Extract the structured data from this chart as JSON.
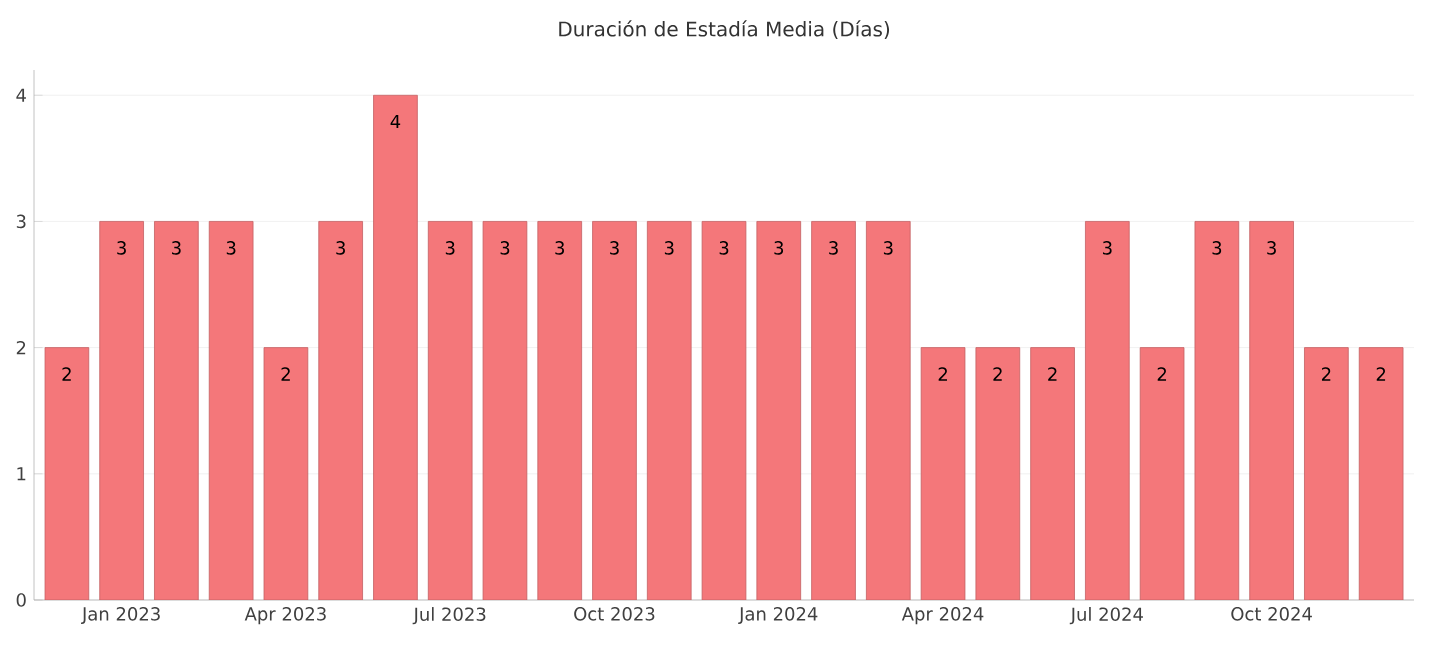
{
  "chart_data": {
    "type": "bar",
    "title": "Duración de Estadía Media (Días)",
    "categories": [
      null,
      "Jan 2023",
      null,
      null,
      "Apr 2023",
      null,
      null,
      "Jul 2023",
      null,
      null,
      "Oct 2023",
      null,
      null,
      "Jan 2024",
      null,
      null,
      "Apr 2024",
      null,
      null,
      "Jul 2024",
      null,
      null,
      "Oct 2024",
      null,
      null
    ],
    "values": [
      2,
      3,
      3,
      3,
      2,
      3,
      4,
      3,
      3,
      3,
      3,
      3,
      3,
      3,
      3,
      3,
      2,
      2,
      2,
      3,
      2,
      3,
      3,
      2,
      2
    ],
    "color": "#f4777a",
    "ylim": [
      0,
      4.2
    ],
    "yticks": [
      0,
      1,
      2,
      3,
      4
    ],
    "grid": "y",
    "data_labels": true
  }
}
